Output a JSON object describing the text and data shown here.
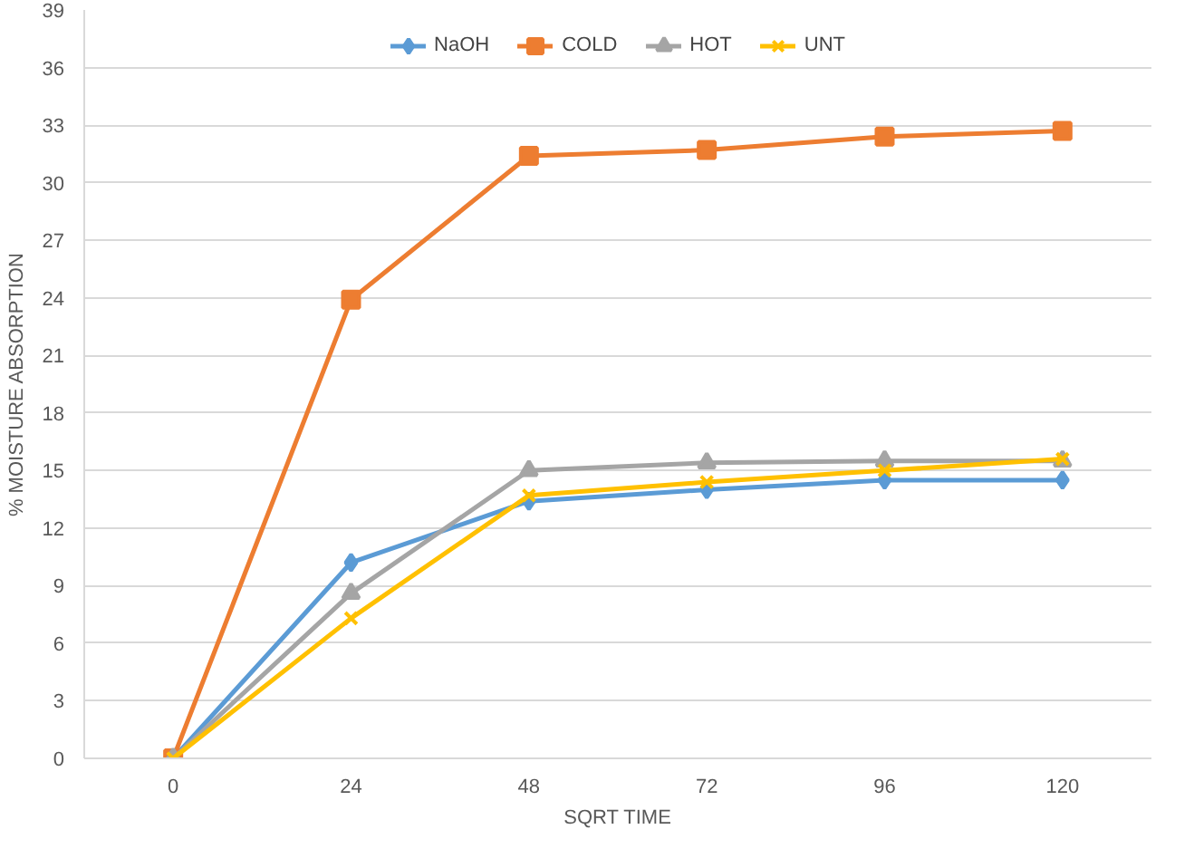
{
  "chart_data": {
    "type": "line",
    "xlabel": "SQRT TIME",
    "ylabel": "% MOISTURE ABSORPTION",
    "categories": [
      "0",
      "24",
      "48",
      "72",
      "96",
      "120"
    ],
    "series": [
      {
        "name": "NaOH",
        "color": "#5b9bd5",
        "marker": "diamond",
        "values": [
          0,
          10.2,
          13.4,
          14.0,
          14.5,
          14.5
        ]
      },
      {
        "name": "COLD",
        "color": "#ed7d31",
        "marker": "square",
        "values": [
          0,
          23.9,
          31.4,
          31.7,
          32.4,
          32.7
        ]
      },
      {
        "name": "HOT",
        "color": "#a5a5a5",
        "marker": "triangle",
        "values": [
          0,
          8.6,
          15.0,
          15.4,
          15.5,
          15.5
        ]
      },
      {
        "name": "UNT",
        "color": "#ffc000",
        "marker": "cross",
        "values": [
          0,
          7.3,
          13.7,
          14.4,
          15.0,
          15.6
        ]
      }
    ],
    "ylim": [
      0,
      39
    ],
    "yticks": [
      0,
      3,
      6,
      9,
      12,
      15,
      18,
      21,
      24,
      27,
      30,
      33,
      36,
      39
    ],
    "grid": "y",
    "legend": "top"
  }
}
